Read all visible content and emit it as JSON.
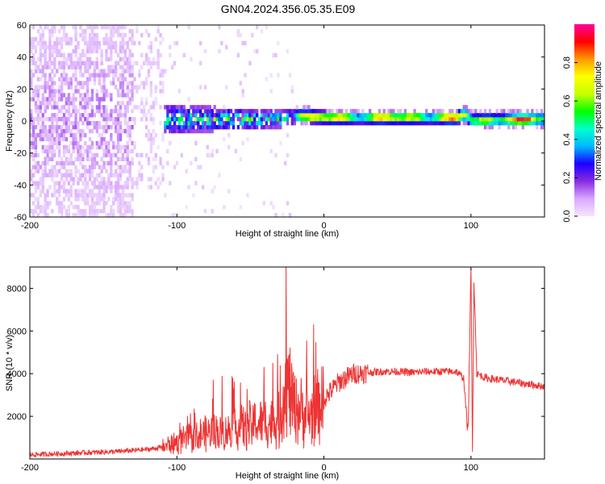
{
  "chart_data": [
    {
      "type": "heatmap",
      "title": "GN04.2024.356.05.35.E09",
      "xlabel": "Height of straight line (km)",
      "ylabel": "Frequency (Hz)",
      "xlim": [
        -200,
        150
      ],
      "ylim": [
        -60,
        60
      ],
      "x_ticks": [
        -200,
        -100,
        0,
        100
      ],
      "y_ticks": [
        -60,
        -40,
        -20,
        0,
        20,
        40,
        60
      ],
      "colorbar": {
        "label": "Normalized spectral amplitude",
        "range": [
          0,
          1
        ],
        "ticks": [
          0.0,
          0.2,
          0.4,
          0.6,
          0.8
        ],
        "colors": [
          "#f4e6ff",
          "#d9a8ff",
          "#8a2be2",
          "#1a00ff",
          "#00b8ff",
          "#00ffcc",
          "#00ff00",
          "#c8ff00",
          "#ffff00",
          "#ff9900",
          "#ff0000",
          "#ff0099"
        ]
      },
      "regions": [
        {
          "x": [
            -200,
            -130
          ],
          "freq_range": [
            -60,
            60
          ],
          "amplitude_range": [
            0.0,
            0.15
          ],
          "desc": "scattered noise"
        },
        {
          "x": [
            -130,
            -110
          ],
          "freq_range": [
            -45,
            60
          ],
          "amplitude_range": [
            0.0,
            0.08
          ]
        },
        {
          "x": [
            -125,
            -20
          ],
          "freq_range": [
            -12,
            10
          ],
          "amplitude_range": [
            0.1,
            0.6
          ]
        },
        {
          "x": [
            -20,
            150
          ],
          "freq_range": [
            -4,
            4
          ],
          "amplitude_range": [
            0.2,
            0.95
          ]
        }
      ],
      "ridge_center_hz": [
        [
          -125,
          0
        ],
        [
          -90,
          0
        ],
        [
          -60,
          0
        ],
        [
          -30,
          0
        ],
        [
          -20,
          2
        ],
        [
          0,
          1
        ],
        [
          50,
          1
        ],
        [
          90,
          1
        ],
        [
          95,
          3
        ],
        [
          100,
          -1
        ],
        [
          150,
          0
        ]
      ]
    },
    {
      "type": "line",
      "xlabel": "Height of straight line (km)",
      "ylabel": "SNR (10 * v/v)",
      "xlim": [
        -200,
        150
      ],
      "ylim": [
        0,
        9000
      ],
      "x_ticks": [
        -200,
        -100,
        0,
        100
      ],
      "y_ticks": [
        2000,
        4000,
        6000,
        8000
      ],
      "color": "#ee3333",
      "series": [
        {
          "x": [
            -200,
            -180,
            -160,
            -140,
            -120,
            -110,
            -100,
            -90,
            -80,
            -70,
            -60,
            -50,
            -40,
            -30,
            -28,
            -25,
            -20,
            -15,
            -10,
            -5,
            0,
            5,
            10,
            20,
            30,
            40,
            50,
            60,
            70,
            80,
            90,
            95,
            98,
            100,
            101,
            102,
            104,
            110,
            120,
            130,
            140,
            150
          ],
          "y": [
            200,
            250,
            300,
            350,
            450,
            550,
            800,
            1000,
            1200,
            1300,
            1400,
            1600,
            1700,
            1800,
            3000,
            3500,
            2500,
            2200,
            2000,
            2400,
            2800,
            3200,
            3600,
            4000,
            4050,
            4100,
            4100,
            4050,
            4100,
            4100,
            4100,
            3800,
            1200,
            8900,
            300,
            8500,
            4000,
            3800,
            3700,
            3600,
            3500,
            3400
          ]
        }
      ]
    }
  ]
}
